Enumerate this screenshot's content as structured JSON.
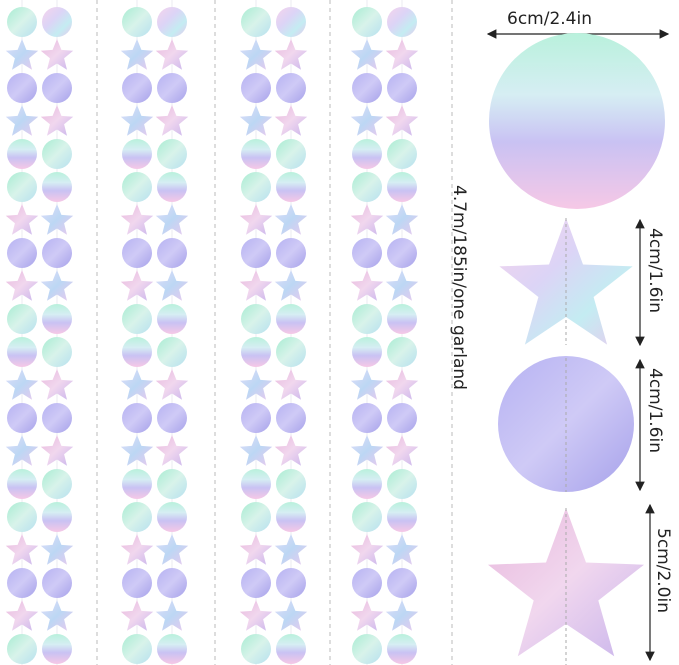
{
  "labels": {
    "big_circle": "6cm/2.4in",
    "garland_length": "4.7m/185in/one garland",
    "small_star": "4cm/1.6in",
    "small_circle": "4cm/1.6in",
    "big_star": "5cm/2.0in"
  },
  "pattern": [
    "circle-pair",
    "star",
    "circle",
    "star",
    "circle-mint",
    "circle-mint",
    "star",
    "circle",
    "star",
    "circle-mint",
    "circle-mint",
    "star",
    "circle",
    "star",
    "circle-mint",
    "circle-mint",
    "star",
    "circle",
    "star",
    "circle-mint"
  ],
  "colors": {
    "holo_mint": "#bdf0de",
    "holo_lavender": "#c9c6f2",
    "holo_pink": "#f3c9e6",
    "holo_violet": "#ada8ee",
    "guide_line": "#bbbbbb",
    "text": "#222222"
  }
}
